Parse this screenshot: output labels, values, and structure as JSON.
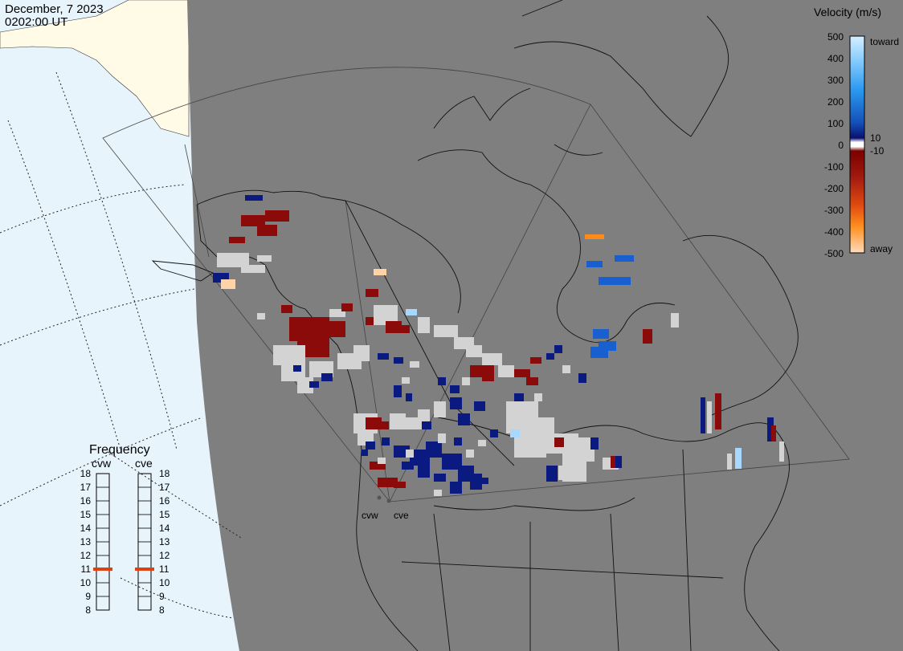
{
  "header": {
    "date": "December, 7 2023",
    "time": "0202:00 UT"
  },
  "colorbar": {
    "title": "Velocity (m/s)",
    "ticks": [
      "500",
      "400",
      "300",
      "200",
      "100",
      "0",
      "-100",
      "-200",
      "-300",
      "-400",
      "-500"
    ],
    "low_labels": [
      "10",
      "-10"
    ],
    "toward_label": "toward",
    "away_label": "away",
    "colors": [
      "#cce8ff",
      "#6fc3ff",
      "#2196f3",
      "#1565c0",
      "#0d1a80",
      "#ffffff",
      "#8b0000",
      "#b22222",
      "#e0401a",
      "#ff8c00",
      "#ffd8b0"
    ]
  },
  "frequency": {
    "title": "Frequency",
    "radars": [
      {
        "name": "cvw",
        "value": 11
      },
      {
        "name": "cve",
        "value": 11
      }
    ],
    "scale": [
      "18",
      "17",
      "16",
      "15",
      "14",
      "13",
      "12",
      "11",
      "10",
      "9",
      "8"
    ],
    "marker_color": "#e04010"
  },
  "radar_sites": [
    "cvw",
    "cve"
  ],
  "map_colors": {
    "land": "#7f7f7f",
    "outside": "#e8f4fc",
    "ice": "#fffbe6",
    "ground_scatter": "#d3d3d3"
  }
}
